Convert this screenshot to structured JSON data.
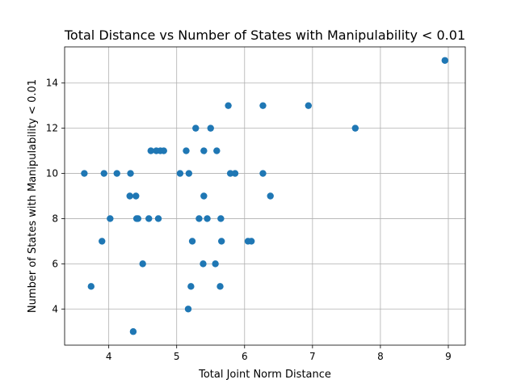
{
  "chart_data": {
    "type": "scatter",
    "title": "Total Distance vs Number of States with Manipulability < 0.01",
    "xlabel": "Total Joint Norm Distance",
    "ylabel": "Number of States with Manipulability < 0.01",
    "xlim": [
      3.35,
      9.25
    ],
    "ylim": [
      2.4,
      15.6
    ],
    "xticks": [
      4,
      5,
      6,
      7,
      8,
      9
    ],
    "yticks": [
      4,
      6,
      8,
      10,
      12,
      14
    ],
    "grid": true,
    "color": "#1f77b4",
    "points": [
      {
        "x": 3.64,
        "y": 10
      },
      {
        "x": 3.74,
        "y": 5
      },
      {
        "x": 3.9,
        "y": 7
      },
      {
        "x": 3.93,
        "y": 10
      },
      {
        "x": 4.02,
        "y": 8
      },
      {
        "x": 4.12,
        "y": 10
      },
      {
        "x": 4.31,
        "y": 9
      },
      {
        "x": 4.32,
        "y": 10
      },
      {
        "x": 4.36,
        "y": 3
      },
      {
        "x": 4.4,
        "y": 9
      },
      {
        "x": 4.41,
        "y": 8
      },
      {
        "x": 4.43,
        "y": 8
      },
      {
        "x": 4.5,
        "y": 6
      },
      {
        "x": 4.59,
        "y": 8
      },
      {
        "x": 4.62,
        "y": 11
      },
      {
        "x": 4.7,
        "y": 11
      },
      {
        "x": 4.73,
        "y": 8
      },
      {
        "x": 4.76,
        "y": 11
      },
      {
        "x": 4.81,
        "y": 11
      },
      {
        "x": 5.05,
        "y": 10
      },
      {
        "x": 5.14,
        "y": 11
      },
      {
        "x": 5.17,
        "y": 4
      },
      {
        "x": 5.18,
        "y": 10
      },
      {
        "x": 5.21,
        "y": 5
      },
      {
        "x": 5.23,
        "y": 7
      },
      {
        "x": 5.28,
        "y": 12
      },
      {
        "x": 5.33,
        "y": 8
      },
      {
        "x": 5.39,
        "y": 6
      },
      {
        "x": 5.4,
        "y": 9
      },
      {
        "x": 5.4,
        "y": 11
      },
      {
        "x": 5.45,
        "y": 8
      },
      {
        "x": 5.5,
        "y": 12
      },
      {
        "x": 5.57,
        "y": 6
      },
      {
        "x": 5.59,
        "y": 11
      },
      {
        "x": 5.64,
        "y": 5
      },
      {
        "x": 5.65,
        "y": 8
      },
      {
        "x": 5.66,
        "y": 7
      },
      {
        "x": 5.76,
        "y": 13
      },
      {
        "x": 5.79,
        "y": 10
      },
      {
        "x": 5.86,
        "y": 10
      },
      {
        "x": 6.05,
        "y": 7
      },
      {
        "x": 6.1,
        "y": 7
      },
      {
        "x": 6.27,
        "y": 10
      },
      {
        "x": 6.27,
        "y": 13
      },
      {
        "x": 6.38,
        "y": 9
      },
      {
        "x": 6.94,
        "y": 13
      },
      {
        "x": 7.63,
        "y": 12
      },
      {
        "x": 8.95,
        "y": 15
      }
    ]
  }
}
